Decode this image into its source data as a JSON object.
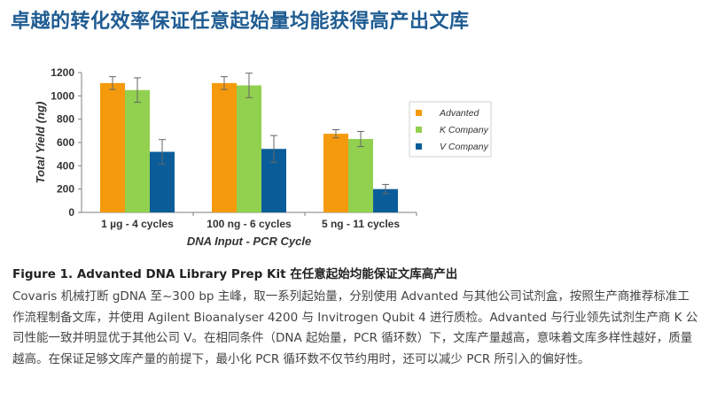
{
  "page": {
    "title": "卓越的转化效率保证任意起始量均能获得高产出文库"
  },
  "figure": {
    "caption": "Figure 1. Advanted DNA Library Prep Kit 在任意起始均能保证文库高产出",
    "body": "Covaris 机械打断 gDNA 至~300 bp 主峰，取一系列起始量，分别使用 Advanted 与其他公司试剂盒，按照生产商推荐标准工作流程制备文库，并使用 Agilent Bioanalyser 4200 与 Invitrogen Qubit 4 进行质检。Advanted 与行业领先试剂生产商 K 公司性能一致并明显优于其他公司 V。在相同条件（DNA 起始量，PCR 循环数）下，文库产量越高，意味着文库多样性越好，质量越高。在保证足够文库产量的前提下，最小化 PCR 循环数不仅节约用时，还可以减少 PCR 所引入的偏好性。"
  },
  "chart_data": {
    "type": "bar",
    "title": "",
    "xlabel": "DNA Input - PCR Cycle",
    "ylabel": "Total Yield (ng)",
    "ylim": [
      0,
      1200
    ],
    "yticks": [
      "0",
      "200",
      "400",
      "600",
      "800",
      "1000",
      "1200"
    ],
    "grid": false,
    "legend_position": "right",
    "categories": [
      "1 µg - 4 cycles",
      "100 ng - 6 cycles",
      "5 ng - 11 cycles"
    ],
    "series": [
      {
        "name": "Advanted",
        "color": "#f59a0c",
        "values": [
          1110,
          1110,
          675
        ],
        "errors": [
          55,
          55,
          35
        ]
      },
      {
        "name": "K Company",
        "color": "#92d050",
        "values": [
          1050,
          1090,
          630
        ],
        "errors": [
          105,
          105,
          65
        ]
      },
      {
        "name": "V Company",
        "color": "#0a5d99",
        "values": [
          520,
          545,
          200
        ],
        "errors": [
          105,
          115,
          40
        ]
      }
    ]
  }
}
